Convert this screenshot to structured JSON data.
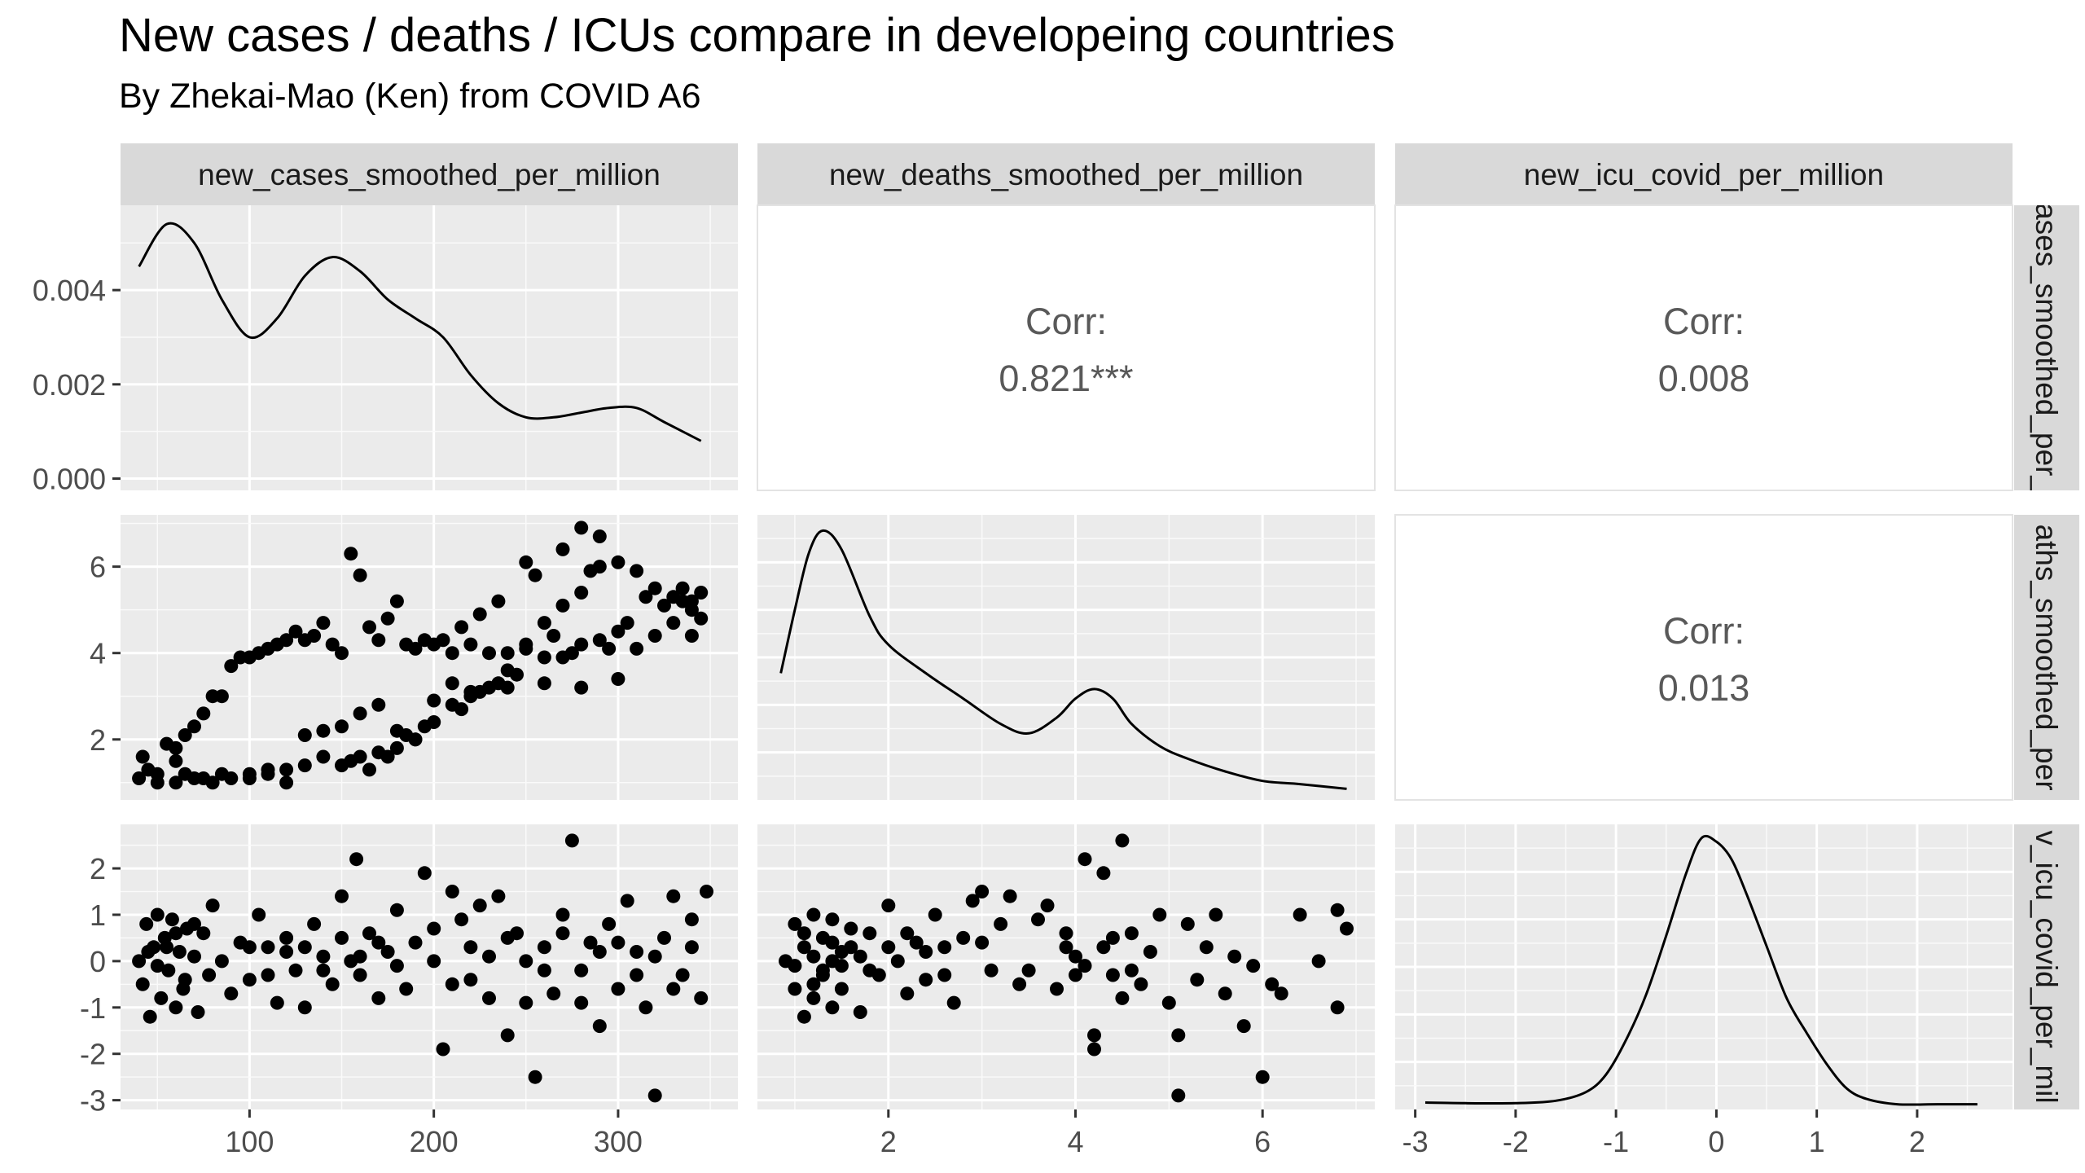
{
  "title": "New cases / deaths / ICUs compare in developeing countries",
  "subtitle": "By Zhekai-Mao (Ken) from COVID A6",
  "chart_data": {
    "type": "scatter",
    "variables": [
      "new_cases_smoothed_per_million",
      "new_deaths_smoothed_per_million",
      "new_icu_covid_per_million"
    ],
    "strip_labels_right": [
      "ases_smoothed_per_",
      "aths_smoothed_per",
      "v_icu_covid_per_mil"
    ],
    "correlations": [
      {
        "row": 0,
        "col": 1,
        "label": "Corr:",
        "value": "0.821***"
      },
      {
        "row": 0,
        "col": 2,
        "label": "Corr:",
        "value": "0.008"
      },
      {
        "row": 1,
        "col": 2,
        "label": "Corr:",
        "value": "0.013"
      }
    ],
    "axes": {
      "cases": {
        "range": [
          30,
          365
        ],
        "ticks": [
          100,
          200,
          300
        ],
        "tick_labels": [
          "100",
          "200",
          "300"
        ]
      },
      "deaths": {
        "range": [
          0.6,
          7.2
        ],
        "ticks": [
          2,
          4,
          6
        ],
        "tick_labels": [
          "2",
          "4",
          "6"
        ]
      },
      "icu": {
        "range": [
          -3.2,
          2.95
        ],
        "ticks": [
          -3,
          -2,
          -1,
          0,
          1,
          2
        ],
        "tick_labels": [
          "-3",
          "-2",
          "-1",
          "0",
          "1",
          "2"
        ]
      },
      "density_cases": {
        "range": [
          -0.00025,
          0.0058
        ],
        "ticks": [
          0,
          0.002,
          0.004
        ],
        "tick_labels": [
          "0.000",
          "0.002",
          "0.004"
        ]
      }
    },
    "density_cases": {
      "x": [
        40,
        55,
        70,
        85,
        100,
        115,
        130,
        145,
        160,
        175,
        190,
        205,
        220,
        235,
        250,
        265,
        280,
        295,
        310,
        325,
        345
      ],
      "y": [
        0.0045,
        0.0054,
        0.005,
        0.0038,
        0.003,
        0.0034,
        0.0043,
        0.0047,
        0.0044,
        0.0038,
        0.0034,
        0.003,
        0.0022,
        0.0016,
        0.0013,
        0.0013,
        0.0014,
        0.0015,
        0.0015,
        0.0012,
        0.0008
      ]
    },
    "density_deaths": {
      "x": [
        0.85,
        1.0,
        1.15,
        1.3,
        1.5,
        1.8,
        2.0,
        2.4,
        2.8,
        3.2,
        3.5,
        3.8,
        4.0,
        4.2,
        4.4,
        4.6,
        4.9,
        5.2,
        5.6,
        6.0,
        6.4,
        6.9
      ],
      "y": [
        0.4,
        0.6,
        0.78,
        0.85,
        0.79,
        0.58,
        0.49,
        0.4,
        0.32,
        0.24,
        0.21,
        0.26,
        0.32,
        0.35,
        0.32,
        0.24,
        0.17,
        0.13,
        0.09,
        0.06,
        0.05,
        0.035
      ],
      "ylim": [
        0,
        0.9
      ]
    },
    "density_icu": {
      "x": [
        -2.9,
        -2.5,
        -2.0,
        -1.6,
        -1.3,
        -1.1,
        -0.9,
        -0.7,
        -0.5,
        -0.3,
        -0.15,
        0.0,
        0.15,
        0.3,
        0.5,
        0.7,
        0.9,
        1.1,
        1.3,
        1.5,
        1.8,
        2.2,
        2.6
      ],
      "y": [
        0.02,
        0.018,
        0.018,
        0.025,
        0.05,
        0.1,
        0.2,
        0.33,
        0.5,
        0.68,
        0.78,
        0.77,
        0.72,
        0.62,
        0.47,
        0.32,
        0.22,
        0.13,
        0.06,
        0.03,
        0.015,
        0.015,
        0.015
      ],
      "ylim": [
        0,
        0.82
      ]
    },
    "cases_vs_deaths": [
      [
        40,
        1.1
      ],
      [
        45,
        1.3
      ],
      [
        42,
        1.6
      ],
      [
        50,
        1.2
      ],
      [
        55,
        1.9
      ],
      [
        60,
        1.5
      ],
      [
        65,
        2.1
      ],
      [
        70,
        2.3
      ],
      [
        75,
        2.6
      ],
      [
        80,
        3.0
      ],
      [
        85,
        3.0
      ],
      [
        90,
        3.7
      ],
      [
        95,
        3.9
      ],
      [
        100,
        3.9
      ],
      [
        105,
        4.0
      ],
      [
        110,
        4.1
      ],
      [
        115,
        4.2
      ],
      [
        120,
        4.3
      ],
      [
        125,
        4.5
      ],
      [
        130,
        4.3
      ],
      [
        135,
        4.4
      ],
      [
        140,
        4.7
      ],
      [
        145,
        4.2
      ],
      [
        150,
        4.0
      ],
      [
        155,
        6.3
      ],
      [
        160,
        5.8
      ],
      [
        165,
        4.6
      ],
      [
        170,
        4.3
      ],
      [
        175,
        4.8
      ],
      [
        180,
        5.2
      ],
      [
        185,
        4.2
      ],
      [
        190,
        4.1
      ],
      [
        195,
        4.3
      ],
      [
        200,
        4.2
      ],
      [
        210,
        4.0
      ],
      [
        220,
        4.2
      ],
      [
        230,
        4.0
      ],
      [
        240,
        4.0
      ],
      [
        250,
        4.1
      ],
      [
        260,
        3.9
      ],
      [
        270,
        3.9
      ],
      [
        280,
        4.2
      ],
      [
        290,
        4.3
      ],
      [
        300,
        4.5
      ],
      [
        305,
        4.7
      ],
      [
        50,
        1.0
      ],
      [
        60,
        1.0
      ],
      [
        70,
        1.1
      ],
      [
        80,
        1.0
      ],
      [
        90,
        1.1
      ],
      [
        100,
        1.2
      ],
      [
        110,
        1.2
      ],
      [
        120,
        1.3
      ],
      [
        130,
        1.4
      ],
      [
        140,
        1.6
      ],
      [
        150,
        1.4
      ],
      [
        160,
        1.6
      ],
      [
        170,
        1.7
      ],
      [
        180,
        1.8
      ],
      [
        190,
        2.0
      ],
      [
        200,
        2.4
      ],
      [
        210,
        2.8
      ],
      [
        220,
        3.0
      ],
      [
        230,
        3.2
      ],
      [
        240,
        3.6
      ],
      [
        250,
        4.2
      ],
      [
        260,
        4.7
      ],
      [
        270,
        5.1
      ],
      [
        280,
        5.4
      ],
      [
        285,
        5.9
      ],
      [
        290,
        6.0
      ],
      [
        300,
        6.1
      ],
      [
        310,
        5.9
      ],
      [
        320,
        5.5
      ],
      [
        330,
        5.3
      ],
      [
        340,
        5.2
      ],
      [
        345,
        5.4
      ],
      [
        130,
        2.1
      ],
      [
        140,
        2.2
      ],
      [
        150,
        2.3
      ],
      [
        160,
        2.6
      ],
      [
        170,
        2.8
      ],
      [
        180,
        2.2
      ],
      [
        190,
        2.0
      ],
      [
        200,
        2.9
      ],
      [
        210,
        3.3
      ],
      [
        220,
        3.1
      ],
      [
        240,
        3.2
      ],
      [
        260,
        3.3
      ],
      [
        280,
        3.2
      ],
      [
        300,
        3.4
      ],
      [
        310,
        4.1
      ],
      [
        320,
        4.4
      ],
      [
        330,
        4.7
      ],
      [
        335,
        5.2
      ],
      [
        340,
        5.0
      ],
      [
        345,
        4.8
      ],
      [
        270,
        6.4
      ],
      [
        280,
        6.9
      ],
      [
        290,
        6.7
      ],
      [
        250,
        6.1
      ],
      [
        255,
        5.8
      ],
      [
        235,
        5.2
      ],
      [
        225,
        4.9
      ],
      [
        215,
        4.6
      ],
      [
        205,
        4.3
      ],
      [
        100,
        1.1
      ],
      [
        110,
        1.3
      ],
      [
        120,
        1.0
      ],
      [
        155,
        1.5
      ],
      [
        165,
        1.3
      ],
      [
        175,
        1.6
      ],
      [
        185,
        2.1
      ],
      [
        195,
        2.3
      ],
      [
        215,
        2.7
      ],
      [
        225,
        3.1
      ],
      [
        235,
        3.3
      ],
      [
        245,
        3.5
      ],
      [
        265,
        4.4
      ],
      [
        275,
        4.0
      ],
      [
        295,
        4.1
      ],
      [
        315,
        5.3
      ],
      [
        325,
        5.1
      ],
      [
        335,
        5.5
      ],
      [
        340,
        4.4
      ],
      [
        60,
        1.8
      ],
      [
        65,
        1.2
      ],
      [
        75,
        1.1
      ],
      [
        85,
        1.2
      ]
    ],
    "cases_vs_icu": [
      [
        40,
        0.0
      ],
      [
        42,
        -0.5
      ],
      [
        44,
        0.8
      ],
      [
        46,
        -1.2
      ],
      [
        48,
        0.3
      ],
      [
        50,
        1.0
      ],
      [
        52,
        -0.8
      ],
      [
        54,
        0.5
      ],
      [
        56,
        -0.2
      ],
      [
        58,
        0.9
      ],
      [
        60,
        -1.0
      ],
      [
        62,
        0.2
      ],
      [
        64,
        -0.6
      ],
      [
        66,
        0.7
      ],
      [
        70,
        0.1
      ],
      [
        72,
        -1.1
      ],
      [
        75,
        0.6
      ],
      [
        78,
        -0.3
      ],
      [
        80,
        1.2
      ],
      [
        85,
        0.0
      ],
      [
        90,
        -0.7
      ],
      [
        95,
        0.4
      ],
      [
        100,
        -0.4
      ],
      [
        105,
        1.0
      ],
      [
        110,
        0.3
      ],
      [
        115,
        -0.9
      ],
      [
        120,
        0.5
      ],
      [
        125,
        -0.2
      ],
      [
        130,
        -1.0
      ],
      [
        135,
        0.8
      ],
      [
        140,
        0.1
      ],
      [
        145,
        -0.5
      ],
      [
        150,
        1.4
      ],
      [
        155,
        0.0
      ],
      [
        158,
        2.2
      ],
      [
        160,
        -0.3
      ],
      [
        165,
        0.6
      ],
      [
        170,
        -0.8
      ],
      [
        175,
        0.2
      ],
      [
        180,
        1.1
      ],
      [
        185,
        -0.6
      ],
      [
        190,
        0.4
      ],
      [
        195,
        1.9
      ],
      [
        200,
        0.0
      ],
      [
        205,
        -1.9
      ],
      [
        210,
        1.5
      ],
      [
        215,
        0.9
      ],
      [
        220,
        -0.4
      ],
      [
        225,
        1.2
      ],
      [
        230,
        0.1
      ],
      [
        235,
        1.4
      ],
      [
        240,
        -1.6
      ],
      [
        245,
        0.6
      ],
      [
        250,
        -0.9
      ],
      [
        255,
        -2.5
      ],
      [
        260,
        0.3
      ],
      [
        265,
        -0.7
      ],
      [
        270,
        1.0
      ],
      [
        275,
        2.6
      ],
      [
        280,
        -0.2
      ],
      [
        285,
        0.4
      ],
      [
        290,
        -1.4
      ],
      [
        295,
        0.8
      ],
      [
        300,
        -0.6
      ],
      [
        305,
        1.3
      ],
      [
        310,
        0.2
      ],
      [
        315,
        -1.0
      ],
      [
        320,
        -2.9
      ],
      [
        325,
        0.5
      ],
      [
        330,
        1.4
      ],
      [
        335,
        -0.3
      ],
      [
        340,
        0.9
      ],
      [
        345,
        -0.8
      ],
      [
        348,
        1.5
      ],
      [
        130,
        0.3
      ],
      [
        140,
        -0.2
      ],
      [
        150,
        0.5
      ],
      [
        160,
        0.1
      ],
      [
        170,
        0.4
      ],
      [
        180,
        -0.1
      ],
      [
        120,
        0.2
      ],
      [
        110,
        -0.3
      ],
      [
        100,
        0.3
      ],
      [
        55,
        0.3
      ],
      [
        60,
        0.6
      ],
      [
        65,
        -0.4
      ],
      [
        70,
        0.8
      ],
      [
        45,
        0.2
      ],
      [
        50,
        -0.1
      ],
      [
        200,
        0.7
      ],
      [
        210,
        -0.5
      ],
      [
        220,
        0.3
      ],
      [
        230,
        -0.8
      ],
      [
        240,
        0.5
      ],
      [
        250,
        0.0
      ],
      [
        260,
        -0.2
      ],
      [
        270,
        0.6
      ],
      [
        280,
        -0.9
      ],
      [
        290,
        0.2
      ],
      [
        300,
        0.4
      ],
      [
        310,
        -0.3
      ],
      [
        320,
        0.1
      ],
      [
        330,
        -0.6
      ],
      [
        340,
        0.3
      ]
    ],
    "deaths_vs_icu": [
      [
        0.9,
        0.0
      ],
      [
        1.0,
        -0.6
      ],
      [
        1.0,
        0.8
      ],
      [
        1.1,
        -1.2
      ],
      [
        1.1,
        0.3
      ],
      [
        1.2,
        1.0
      ],
      [
        1.2,
        -0.8
      ],
      [
        1.3,
        0.5
      ],
      [
        1.3,
        -0.2
      ],
      [
        1.4,
        0.9
      ],
      [
        1.4,
        -1.0
      ],
      [
        1.5,
        0.2
      ],
      [
        1.5,
        -0.6
      ],
      [
        1.6,
        0.7
      ],
      [
        1.7,
        0.1
      ],
      [
        1.7,
        -1.1
      ],
      [
        1.8,
        0.6
      ],
      [
        1.9,
        -0.3
      ],
      [
        2.0,
        1.2
      ],
      [
        2.1,
        0.0
      ],
      [
        2.2,
        -0.7
      ],
      [
        2.3,
        0.4
      ],
      [
        2.4,
        -0.4
      ],
      [
        2.5,
        1.0
      ],
      [
        2.6,
        0.3
      ],
      [
        2.7,
        -0.9
      ],
      [
        2.8,
        0.5
      ],
      [
        2.9,
        1.3
      ],
      [
        3.0,
        1.5
      ],
      [
        3.1,
        -0.2
      ],
      [
        3.2,
        0.8
      ],
      [
        3.3,
        1.4
      ],
      [
        3.4,
        -0.5
      ],
      [
        3.6,
        0.9
      ],
      [
        3.7,
        1.2
      ],
      [
        3.8,
        -0.6
      ],
      [
        3.9,
        0.3
      ],
      [
        4.0,
        -0.3
      ],
      [
        4.1,
        2.2
      ],
      [
        4.2,
        -1.6
      ],
      [
        4.2,
        -1.9
      ],
      [
        4.3,
        1.9
      ],
      [
        4.4,
        0.5
      ],
      [
        4.5,
        2.6
      ],
      [
        4.5,
        -0.8
      ],
      [
        4.6,
        0.6
      ],
      [
        4.7,
        -0.5
      ],
      [
        4.8,
        0.2
      ],
      [
        4.9,
        1.0
      ],
      [
        5.0,
        -0.9
      ],
      [
        5.1,
        -1.6
      ],
      [
        5.1,
        -2.9
      ],
      [
        5.2,
        0.8
      ],
      [
        5.3,
        -0.4
      ],
      [
        5.4,
        0.3
      ],
      [
        5.5,
        1.0
      ],
      [
        5.6,
        -0.7
      ],
      [
        5.7,
        0.1
      ],
      [
        5.8,
        -1.4
      ],
      [
        5.9,
        -0.1
      ],
      [
        6.0,
        -2.5
      ],
      [
        6.1,
        -0.5
      ],
      [
        6.2,
        -0.7
      ],
      [
        6.4,
        1.0
      ],
      [
        6.6,
        0.0
      ],
      [
        6.8,
        -1.0
      ],
      [
        6.8,
        1.1
      ],
      [
        6.9,
        0.7
      ],
      [
        1.2,
        0.1
      ],
      [
        1.3,
        -0.3
      ],
      [
        1.4,
        0.4
      ],
      [
        1.5,
        -0.1
      ],
      [
        1.6,
        0.3
      ],
      [
        1.8,
        -0.2
      ],
      [
        1.1,
        0.6
      ],
      [
        1.0,
        -0.1
      ],
      [
        1.2,
        -0.5
      ],
      [
        1.4,
        0.0
      ],
      [
        2.0,
        0.3
      ],
      [
        2.2,
        0.6
      ],
      [
        2.4,
        0.2
      ],
      [
        2.6,
        -0.3
      ],
      [
        3.0,
        0.4
      ],
      [
        3.5,
        -0.2
      ],
      [
        4.0,
        0.1
      ],
      [
        4.3,
        0.3
      ],
      [
        4.4,
        -0.3
      ],
      [
        4.6,
        -0.2
      ],
      [
        3.9,
        0.6
      ],
      [
        4.1,
        -0.1
      ]
    ]
  }
}
